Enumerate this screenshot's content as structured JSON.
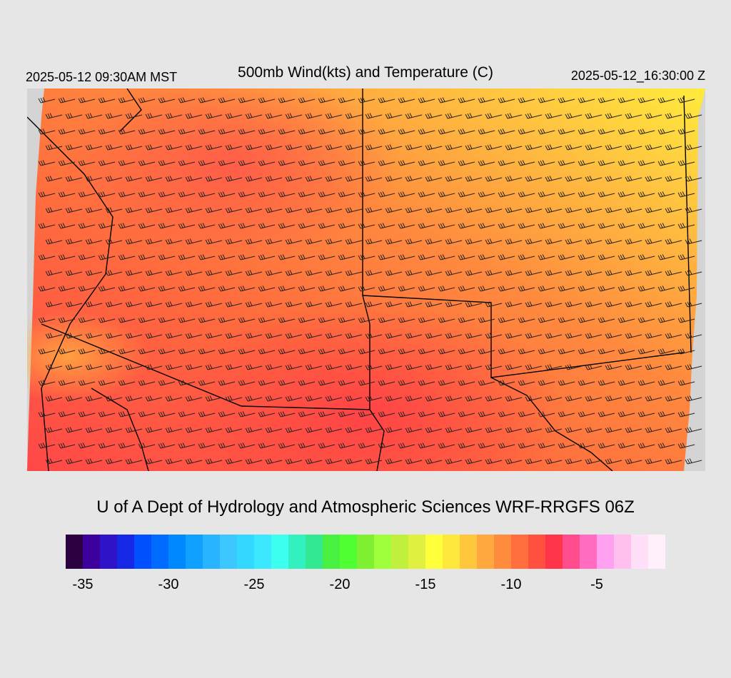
{
  "header": {
    "local_time": "2025-05-12 09:30AM MST",
    "title": "500mb Wind(kts) and Temperature (C)",
    "utc_time": "2025-05-12_16:30:00 Z"
  },
  "credit": "U of A Dept of Hydrology and Atmospheric Sciences WRF-RRGFS 06Z",
  "colorbar": {
    "min": -36,
    "max": -1,
    "colors": [
      "#2a0040",
      "#3e009c",
      "#2d14c8",
      "#1428e6",
      "#0050ff",
      "#006cff",
      "#0088ff",
      "#10a0ff",
      "#28b4ff",
      "#3cc8ff",
      "#32d8ff",
      "#3ce8ff",
      "#3cfff0",
      "#32f0c0",
      "#32e890",
      "#48f040",
      "#50ff32",
      "#80f032",
      "#a0ff3c",
      "#c0f03c",
      "#e0f040",
      "#ffff3c",
      "#ffe83c",
      "#ffc83c",
      "#ffa840",
      "#ff8c3c",
      "#ff6e3c",
      "#ff5040",
      "#ff3448",
      "#ff4c8c",
      "#ff6cc0",
      "#ffa0f0",
      "#ffc0f0",
      "#ffe0f8",
      "#fff0fc"
    ],
    "tick_labels": [
      "-35",
      "-30",
      "-25",
      "-20",
      "-15",
      "-10",
      "-5"
    ],
    "tick_values": [
      -35,
      -30,
      -25,
      -20,
      -15,
      -10,
      -5
    ]
  }
}
